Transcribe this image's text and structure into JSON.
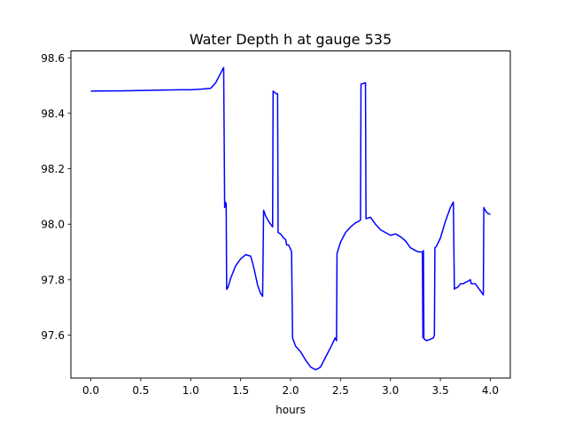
{
  "chart_data": {
    "type": "line",
    "title": "Water Depth h at gauge 535",
    "xlabel": "hours",
    "ylabel": "",
    "xlim": [
      -0.2,
      4.2
    ],
    "ylim": [
      97.445,
      98.625
    ],
    "xticks": [
      0.0,
      0.5,
      1.0,
      1.5,
      2.0,
      2.5,
      3.0,
      3.5,
      4.0
    ],
    "xtick_labels": [
      "0.0",
      "0.5",
      "1.0",
      "1.5",
      "2.0",
      "2.5",
      "3.0",
      "3.5",
      "4.0"
    ],
    "yticks": [
      97.6,
      97.8,
      98.0,
      98.2,
      98.4,
      98.6
    ],
    "ytick_labels": [
      "97.6",
      "97.8",
      "98.0",
      "98.2",
      "98.4",
      "98.6"
    ],
    "grid": false,
    "legend": "none",
    "series": [
      {
        "color": "#0000ff",
        "x": [
          0.0,
          0.3,
          0.6,
          0.9,
          1.0,
          1.1,
          1.2,
          1.25,
          1.3,
          1.33,
          1.34,
          1.345,
          1.355,
          1.36,
          1.37,
          1.38,
          1.4,
          1.45,
          1.5,
          1.55,
          1.6,
          1.62,
          1.64,
          1.67,
          1.7,
          1.72,
          1.73,
          1.75,
          1.78,
          1.8,
          1.82,
          1.825,
          1.86,
          1.87,
          1.875,
          1.9,
          1.93,
          1.95,
          1.96,
          1.98,
          2.0,
          2.01,
          2.02,
          2.05,
          2.1,
          2.15,
          2.2,
          2.25,
          2.28,
          2.3,
          2.35,
          2.4,
          2.44,
          2.445,
          2.46,
          2.465,
          2.5,
          2.55,
          2.6,
          2.65,
          2.68,
          2.7,
          2.705,
          2.75,
          2.755,
          2.8,
          2.85,
          2.9,
          2.95,
          3.0,
          3.05,
          3.1,
          3.15,
          3.2,
          3.25,
          3.28,
          3.3,
          3.32,
          3.325,
          3.33,
          3.335,
          3.34,
          3.36,
          3.4,
          3.43,
          3.44,
          3.445,
          3.46,
          3.5,
          3.55,
          3.6,
          3.63,
          3.64,
          3.645,
          3.66,
          3.68,
          3.7,
          3.73,
          3.75,
          3.78,
          3.8,
          3.81,
          3.85,
          3.87,
          3.9,
          3.93,
          3.935,
          3.95,
          3.97,
          4.0
        ],
        "y": [
          98.48,
          98.481,
          98.483,
          98.485,
          98.485,
          98.487,
          98.49,
          98.51,
          98.545,
          98.565,
          98.06,
          98.08,
          98.075,
          97.765,
          97.77,
          97.78,
          97.805,
          97.85,
          97.875,
          97.89,
          97.885,
          97.86,
          97.83,
          97.78,
          97.75,
          97.74,
          98.05,
          98.03,
          98.01,
          98.0,
          97.99,
          98.48,
          98.47,
          98.47,
          97.97,
          97.965,
          97.95,
          97.945,
          97.925,
          97.925,
          97.91,
          97.9,
          97.59,
          97.56,
          97.54,
          97.51,
          97.485,
          97.475,
          97.48,
          97.485,
          97.52,
          97.555,
          97.585,
          97.59,
          97.58,
          97.895,
          97.935,
          97.97,
          97.99,
          98.005,
          98.01,
          98.015,
          98.505,
          98.51,
          98.02,
          98.025,
          98.0,
          97.98,
          97.97,
          97.96,
          97.965,
          97.955,
          97.94,
          97.915,
          97.905,
          97.9,
          97.9,
          97.9,
          97.59,
          97.905,
          97.59,
          97.585,
          97.58,
          97.585,
          97.59,
          97.6,
          97.915,
          97.92,
          97.95,
          98.01,
          98.06,
          98.08,
          97.765,
          97.77,
          97.77,
          97.775,
          97.785,
          97.785,
          97.79,
          97.795,
          97.8,
          97.785,
          97.785,
          97.775,
          97.76,
          97.745,
          98.06,
          98.05,
          98.04,
          98.035
        ]
      }
    ]
  }
}
